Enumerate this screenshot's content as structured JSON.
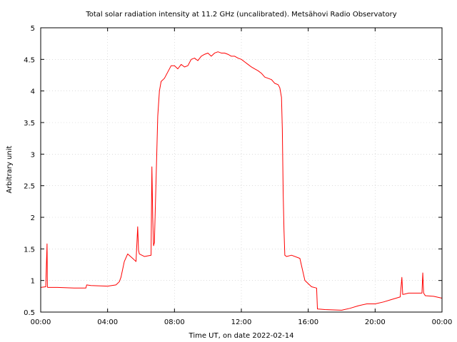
{
  "chart_data": {
    "type": "line",
    "title": "Total solar radiation intensity at 11.2 GHz (uncalibrated). Metsähovi Radio Observatory",
    "xlabel": "Time UT, on date 2022-02-14",
    "ylabel": "Arbitrary unit",
    "x_unit": "hours UT",
    "xlim": [
      0,
      24
    ],
    "ylim": [
      0.5,
      5
    ],
    "grid": true,
    "x_ticks": [
      {
        "value": 0,
        "label": "00:00"
      },
      {
        "value": 4,
        "label": "04:00"
      },
      {
        "value": 8,
        "label": "08:00"
      },
      {
        "value": 12,
        "label": "12:00"
      },
      {
        "value": 16,
        "label": "16:00"
      },
      {
        "value": 20,
        "label": "20:00"
      },
      {
        "value": 24,
        "label": "00:00"
      }
    ],
    "y_ticks": [
      {
        "value": 0.5,
        "label": "0.5"
      },
      {
        "value": 1,
        "label": "1"
      },
      {
        "value": 1.5,
        "label": "1.5"
      },
      {
        "value": 2,
        "label": "2"
      },
      {
        "value": 2.5,
        "label": "2.5"
      },
      {
        "value": 3,
        "label": "3"
      },
      {
        "value": 3.5,
        "label": "3.5"
      },
      {
        "value": 4,
        "label": "4"
      },
      {
        "value": 4.5,
        "label": "4.5"
      },
      {
        "value": 5,
        "label": "5"
      }
    ],
    "series": [
      {
        "color": "#ff0000",
        "x": [
          0,
          0.3,
          0.38,
          0.4,
          0.42,
          1,
          2,
          2.7,
          2.75,
          3,
          4,
          4.5,
          4.7,
          4.8,
          5,
          5.2,
          5.5,
          5.7,
          5.8,
          5.85,
          5.9,
          6.2,
          6.6,
          6.65,
          6.7,
          6.75,
          6.8,
          6.9,
          7,
          7.1,
          7.2,
          7.4,
          7.6,
          7.8,
          8,
          8.2,
          8.4,
          8.6,
          8.8,
          9,
          9.2,
          9.4,
          9.6,
          9.8,
          10,
          10.2,
          10.4,
          10.6,
          10.8,
          11,
          11.2,
          11.4,
          11.6,
          11.8,
          12,
          12.2,
          12.4,
          12.6,
          12.8,
          13,
          13.2,
          13.4,
          13.6,
          13.8,
          14,
          14.2,
          14.3,
          14.4,
          14.45,
          14.5,
          14.55,
          14.6,
          14.7,
          15,
          15.5,
          15.8,
          16,
          16.2,
          16.5,
          16.55,
          17,
          18,
          18.5,
          19,
          19.5,
          20,
          20.5,
          21,
          21.5,
          21.6,
          21.65,
          21.7,
          22,
          22.5,
          22.8,
          22.85,
          22.9,
          23,
          23.5,
          24
        ],
        "y": [
          0.89,
          0.9,
          1.58,
          0.9,
          0.89,
          0.89,
          0.88,
          0.88,
          0.93,
          0.92,
          0.91,
          0.93,
          0.98,
          1.05,
          1.3,
          1.42,
          1.35,
          1.3,
          1.85,
          1.48,
          1.42,
          1.38,
          1.4,
          2.8,
          2.0,
          1.55,
          1.6,
          2.6,
          3.6,
          4.0,
          4.15,
          4.2,
          4.3,
          4.4,
          4.4,
          4.35,
          4.42,
          4.38,
          4.4,
          4.5,
          4.52,
          4.48,
          4.55,
          4.58,
          4.6,
          4.55,
          4.6,
          4.62,
          4.6,
          4.6,
          4.58,
          4.55,
          4.55,
          4.52,
          4.5,
          4.46,
          4.42,
          4.38,
          4.35,
          4.32,
          4.28,
          4.22,
          4.2,
          4.18,
          4.12,
          4.1,
          4.05,
          3.9,
          3.4,
          2.4,
          1.8,
          1.4,
          1.38,
          1.4,
          1.35,
          1.0,
          0.95,
          0.9,
          0.88,
          0.55,
          0.54,
          0.53,
          0.56,
          0.6,
          0.63,
          0.63,
          0.66,
          0.7,
          0.74,
          1.05,
          0.78,
          0.78,
          0.8,
          0.8,
          0.8,
          1.12,
          0.8,
          0.76,
          0.75,
          0.72
        ]
      }
    ]
  }
}
